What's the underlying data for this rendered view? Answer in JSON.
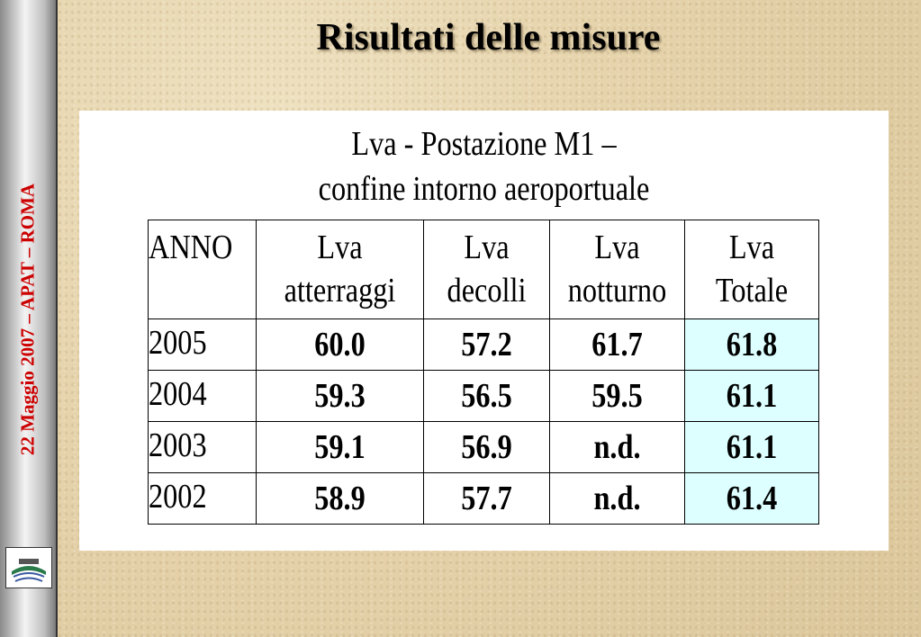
{
  "sidebar": {
    "text": "22 Maggio 2007 – APAT – ROMA"
  },
  "header": {
    "title": "Risultati delle misure"
  },
  "table": {
    "caption": [
      "Lva - Postazione M1 –",
      "confine intorno aeroportuale"
    ],
    "columns": [
      [
        "ANNO"
      ],
      [
        "Lva",
        "atterraggi"
      ],
      [
        "Lva",
        "decolli"
      ],
      [
        "Lva",
        "notturno"
      ],
      [
        "Lva",
        "Totale"
      ]
    ],
    "rows": [
      [
        "2005",
        "60.0",
        "57.2",
        "61.7",
        "61.8"
      ],
      [
        "2004",
        "59.3",
        "56.5",
        "59.5",
        "61.1"
      ],
      [
        "2003",
        "59.1",
        "56.9",
        "n.d.",
        "61.1"
      ],
      [
        "2002",
        "58.9",
        "57.7",
        "n.d.",
        "61.4"
      ]
    ]
  }
}
